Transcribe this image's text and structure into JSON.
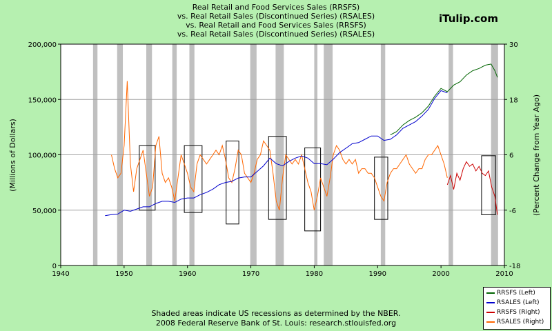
{
  "watermark": "iTulip.com",
  "chart_data": {
    "type": "line",
    "title": [
      "Real Retail and Food Services Sales (RRSFS)",
      "vs.  Real Retail Sales (Discontinued Series) (RSALES)",
      "vs.  Real Retail and Food Services Sales (RRSFS)",
      "vs.  Real Retail Sales (Discontinued Series) (RSALES)"
    ],
    "ylabel_left": "(Millions of Dollars)",
    "ylabel_right": "(Percent Change from Year Ago)",
    "xlim": [
      1940,
      2010
    ],
    "ylim_left": [
      0,
      200000
    ],
    "ylim_right": [
      -18,
      30
    ],
    "x_ticks": [
      1940,
      1950,
      1960,
      1970,
      1980,
      1990,
      2000,
      2010
    ],
    "y_ticks_left": [
      0,
      50000,
      100000,
      150000,
      200000
    ],
    "y_tick_labels_left": [
      "0",
      "50,000",
      "100,000",
      "150,000",
      "200,000"
    ],
    "y_ticks_right": [
      -18,
      -6,
      6,
      18,
      30
    ],
    "y_tick_labels_right": [
      "-18",
      "-6",
      "6",
      "18",
      "30"
    ],
    "grid": true,
    "legend_position": "bottom-right",
    "recessions": [
      [
        1945.1,
        1945.8
      ],
      [
        1948.9,
        1949.8
      ],
      [
        1953.5,
        1954.4
      ],
      [
        1957.6,
        1958.3
      ],
      [
        1960.3,
        1961.1
      ],
      [
        1969.9,
        1970.9
      ],
      [
        1973.9,
        1975.2
      ],
      [
        1980.0,
        1980.5
      ],
      [
        1981.5,
        1982.9
      ],
      [
        1990.5,
        1991.2
      ],
      [
        2001.2,
        2001.9
      ],
      [
        2007.9,
        2009.0
      ]
    ],
    "highlight_boxes": [
      {
        "x": [
          1952.4,
          1954.9
        ],
        "y": [
          -6,
          8
        ]
      },
      {
        "x": [
          1959.5,
          1962.3
        ],
        "y": [
          -6.5,
          8
        ]
      },
      {
        "x": [
          1966.1,
          1968.1
        ],
        "y": [
          -9,
          9
        ]
      },
      {
        "x": [
          1972.8,
          1975.6
        ],
        "y": [
          -8,
          10
        ]
      },
      {
        "x": [
          1978.5,
          1981.0
        ],
        "y": [
          -10.5,
          7.5
        ]
      },
      {
        "x": [
          1989.5,
          1991.6
        ],
        "y": [
          -8,
          5.5
        ]
      },
      {
        "x": [
          2006.4,
          2008.6
        ],
        "y": [
          -7,
          5.8
        ]
      }
    ],
    "series": [
      {
        "name": "RRSFS (Left)",
        "axis": "left",
        "color": "#006400",
        "points": [
          [
            1992.0,
            118000
          ],
          [
            1993.0,
            121000
          ],
          [
            1994.0,
            127000
          ],
          [
            1995.0,
            131000
          ],
          [
            1996.0,
            134000
          ],
          [
            1997.0,
            138000
          ],
          [
            1998.0,
            144000
          ],
          [
            1999.0,
            153000
          ],
          [
            2000.0,
            160000
          ],
          [
            2001.0,
            157000
          ],
          [
            2002.0,
            163000
          ],
          [
            2003.0,
            166000
          ],
          [
            2004.0,
            172000
          ],
          [
            2005.0,
            176000
          ],
          [
            2006.0,
            178000
          ],
          [
            2007.0,
            181000
          ],
          [
            2007.9,
            182000
          ],
          [
            2008.5,
            176000
          ],
          [
            2008.9,
            170000
          ]
        ]
      },
      {
        "name": "RSALES (Left)",
        "axis": "left",
        "color": "#0000cd",
        "points": [
          [
            1947.0,
            45000
          ],
          [
            1948.0,
            46000
          ],
          [
            1949.0,
            46500
          ],
          [
            1950.0,
            50000
          ],
          [
            1951.0,
            49000
          ],
          [
            1952.0,
            51000
          ],
          [
            1953.0,
            53000
          ],
          [
            1954.0,
            53000
          ],
          [
            1955.0,
            56000
          ],
          [
            1956.0,
            58000
          ],
          [
            1957.0,
            58000
          ],
          [
            1958.0,
            57000
          ],
          [
            1959.0,
            60000
          ],
          [
            1960.0,
            61000
          ],
          [
            1961.0,
            61000
          ],
          [
            1962.0,
            64000
          ],
          [
            1963.0,
            66000
          ],
          [
            1964.0,
            69000
          ],
          [
            1965.0,
            73000
          ],
          [
            1966.0,
            75000
          ],
          [
            1967.0,
            76000
          ],
          [
            1968.0,
            79000
          ],
          [
            1969.0,
            80000
          ],
          [
            1970.0,
            80000
          ],
          [
            1971.0,
            85000
          ],
          [
            1972.0,
            90000
          ],
          [
            1973.0,
            97000
          ],
          [
            1974.0,
            92000
          ],
          [
            1975.0,
            90000
          ],
          [
            1976.0,
            94000
          ],
          [
            1977.0,
            97000
          ],
          [
            1978.0,
            99000
          ],
          [
            1979.0,
            97000
          ],
          [
            1980.0,
            92000
          ],
          [
            1981.0,
            92000
          ],
          [
            1982.0,
            91000
          ],
          [
            1983.0,
            96000
          ],
          [
            1984.0,
            102000
          ],
          [
            1985.0,
            106000
          ],
          [
            1986.0,
            110000
          ],
          [
            1987.0,
            111000
          ],
          [
            1988.0,
            114000
          ],
          [
            1989.0,
            117000
          ],
          [
            1990.0,
            117000
          ],
          [
            1991.0,
            113000
          ],
          [
            1992.0,
            114000
          ],
          [
            1993.0,
            118000
          ],
          [
            1994.0,
            124000
          ],
          [
            1995.0,
            127000
          ],
          [
            1996.0,
            130000
          ],
          [
            1997.0,
            135000
          ],
          [
            1998.0,
            141000
          ],
          [
            1999.0,
            151000
          ],
          [
            2000.0,
            158000
          ],
          [
            2001.0,
            156000
          ]
        ]
      },
      {
        "name": "RRSFS (Right)",
        "axis": "right",
        "color": "#cc0000",
        "points": [
          [
            2001.0,
            -0.5
          ],
          [
            2001.5,
            1.5
          ],
          [
            2002.0,
            -1.5
          ],
          [
            2002.5,
            2.0
          ],
          [
            2003.0,
            0.5
          ],
          [
            2003.5,
            3.0
          ],
          [
            2004.0,
            4.5
          ],
          [
            2004.5,
            3.5
          ],
          [
            2005.0,
            4.0
          ],
          [
            2005.5,
            2.5
          ],
          [
            2006.0,
            3.5
          ],
          [
            2006.5,
            2.0
          ],
          [
            2007.0,
            1.5
          ],
          [
            2007.5,
            2.5
          ],
          [
            2008.0,
            -1.0
          ],
          [
            2008.5,
            -3.0
          ],
          [
            2008.9,
            -7.0
          ]
        ]
      },
      {
        "name": "RSALES (Right)",
        "axis": "right",
        "color": "#ff6600",
        "points": [
          [
            1948.0,
            6.0
          ],
          [
            1948.5,
            3.0
          ],
          [
            1949.0,
            1.0
          ],
          [
            1949.5,
            2.0
          ],
          [
            1950.0,
            8.0
          ],
          [
            1950.5,
            22.0
          ],
          [
            1951.0,
            4.0
          ],
          [
            1951.5,
            -2.0
          ],
          [
            1952.0,
            3.0
          ],
          [
            1952.5,
            5.0
          ],
          [
            1953.0,
            7.0
          ],
          [
            1953.5,
            2.0
          ],
          [
            1954.0,
            -3.0
          ],
          [
            1954.5,
            -1.0
          ],
          [
            1955.0,
            8.0
          ],
          [
            1955.5,
            10.0
          ],
          [
            1956.0,
            2.0
          ],
          [
            1956.5,
            0.0
          ],
          [
            1957.0,
            1.0
          ],
          [
            1957.5,
            -1.0
          ],
          [
            1958.0,
            -4.0
          ],
          [
            1958.5,
            1.0
          ],
          [
            1959.0,
            6.0
          ],
          [
            1959.5,
            4.0
          ],
          [
            1960.0,
            2.0
          ],
          [
            1960.5,
            -1.0
          ],
          [
            1961.0,
            -2.0
          ],
          [
            1961.5,
            4.0
          ],
          [
            1962.0,
            6.0
          ],
          [
            1962.5,
            5.0
          ],
          [
            1963.0,
            4.0
          ],
          [
            1963.5,
            5.0
          ],
          [
            1964.0,
            6.0
          ],
          [
            1964.5,
            7.0
          ],
          [
            1965.0,
            6.0
          ],
          [
            1965.5,
            8.0
          ],
          [
            1966.0,
            5.0
          ],
          [
            1966.5,
            1.0
          ],
          [
            1967.0,
            0.0
          ],
          [
            1967.5,
            3.0
          ],
          [
            1968.0,
            7.0
          ],
          [
            1968.5,
            6.0
          ],
          [
            1969.0,
            2.0
          ],
          [
            1969.5,
            1.0
          ],
          [
            1970.0,
            0.0
          ],
          [
            1970.5,
            2.0
          ],
          [
            1971.0,
            5.0
          ],
          [
            1971.5,
            6.0
          ],
          [
            1972.0,
            9.0
          ],
          [
            1972.5,
            8.0
          ],
          [
            1973.0,
            7.0
          ],
          [
            1973.5,
            2.0
          ],
          [
            1974.0,
            -4.0
          ],
          [
            1974.5,
            -6.0
          ],
          [
            1975.0,
            1.0
          ],
          [
            1975.5,
            6.0
          ],
          [
            1976.0,
            5.0
          ],
          [
            1976.5,
            4.0
          ],
          [
            1977.0,
            5.0
          ],
          [
            1977.5,
            4.0
          ],
          [
            1978.0,
            6.0
          ],
          [
            1978.5,
            3.0
          ],
          [
            1979.0,
            0.0
          ],
          [
            1979.5,
            -2.0
          ],
          [
            1980.0,
            -6.0
          ],
          [
            1980.5,
            -3.0
          ],
          [
            1981.0,
            1.0
          ],
          [
            1981.5,
            -1.0
          ],
          [
            1982.0,
            -3.0
          ],
          [
            1982.5,
            1.0
          ],
          [
            1983.0,
            6.0
          ],
          [
            1983.5,
            8.0
          ],
          [
            1984.0,
            7.0
          ],
          [
            1984.5,
            5.0
          ],
          [
            1985.0,
            4.0
          ],
          [
            1985.5,
            5.0
          ],
          [
            1986.0,
            4.0
          ],
          [
            1986.5,
            5.0
          ],
          [
            1987.0,
            2.0
          ],
          [
            1987.5,
            3.0
          ],
          [
            1988.0,
            3.0
          ],
          [
            1988.5,
            2.0
          ],
          [
            1989.0,
            2.0
          ],
          [
            1989.5,
            1.0
          ],
          [
            1990.0,
            -1.0
          ],
          [
            1990.5,
            -3.0
          ],
          [
            1991.0,
            -4.0
          ],
          [
            1991.5,
            0.0
          ],
          [
            1992.0,
            2.0
          ],
          [
            1992.5,
            3.0
          ],
          [
            1993.0,
            3.0
          ],
          [
            1993.5,
            4.0
          ],
          [
            1994.0,
            5.0
          ],
          [
            1994.5,
            6.0
          ],
          [
            1995.0,
            4.0
          ],
          [
            1995.5,
            3.0
          ],
          [
            1996.0,
            2.0
          ],
          [
            1996.5,
            3.0
          ],
          [
            1997.0,
            3.0
          ],
          [
            1997.5,
            5.0
          ],
          [
            1998.0,
            6.0
          ],
          [
            1998.5,
            6.0
          ],
          [
            1999.0,
            7.0
          ],
          [
            1999.5,
            8.0
          ],
          [
            2000.0,
            6.0
          ],
          [
            2000.5,
            4.0
          ],
          [
            2001.0,
            1.0
          ]
        ]
      }
    ]
  },
  "footer": [
    "Shaded areas indicate US recessions as determined by the NBER.",
    "2008 Federal Reserve Bank of St. Louis: research.stlouisfed.org"
  ],
  "legend": {
    "items": [
      {
        "label": "RRSFS (Left)",
        "color": "#006400"
      },
      {
        "label": "RSALES (Left)",
        "color": "#0000cd"
      },
      {
        "label": "RRSFS (Right)",
        "color": "#cc0000"
      },
      {
        "label": "RSALES (Right)",
        "color": "#ff6600"
      }
    ]
  }
}
